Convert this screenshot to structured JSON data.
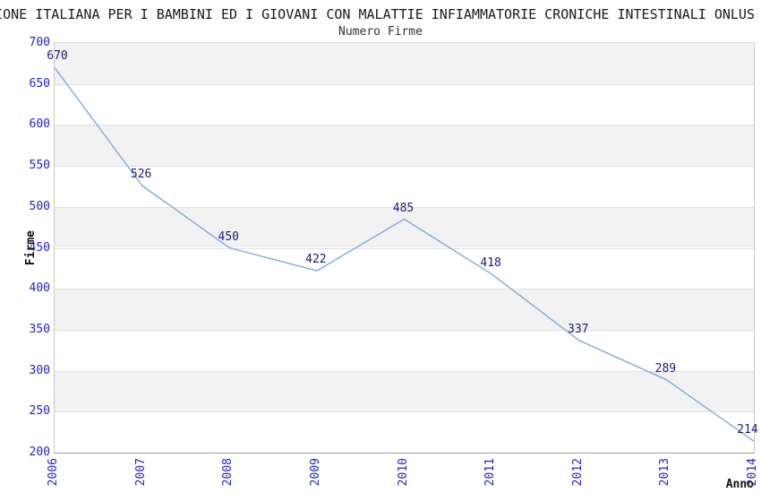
{
  "header": {
    "title_clipped": "IONE ITALIANA PER I BAMBINI ED I GIOVANI CON MALATTIE INFIAMMATORIE CRONICHE INTESTINALI ONLUS"
  },
  "chart_data": {
    "type": "line",
    "title": "Numero Firme",
    "xlabel": "Anno",
    "ylabel": "Firme",
    "categories": [
      "2006",
      "2007",
      "2008",
      "2009",
      "2010",
      "2011",
      "2012",
      "2013",
      "2014"
    ],
    "series": [
      {
        "name": "Numero Firme",
        "values": [
          670,
          526,
          450,
          422,
          485,
          418,
          337,
          289,
          214
        ]
      }
    ],
    "ylim": [
      200,
      700
    ],
    "ytick_step": 50,
    "yticks": [
      700,
      650,
      600,
      550,
      500,
      450,
      400,
      350,
      300,
      250,
      200
    ],
    "grid": "horizontal-bands-alternating",
    "legend_position": "none",
    "point_labels_shown": true,
    "x_tick_rotation_deg": 90,
    "colors": {
      "line": "#7fabdf",
      "tick_label": "#2222cc",
      "point_label": "#1a1a80",
      "band_gray": "#f2f2f2",
      "band_white": "#ffffff",
      "gridline": "#e0e0e0",
      "title_text": "#1a1a1a"
    }
  }
}
